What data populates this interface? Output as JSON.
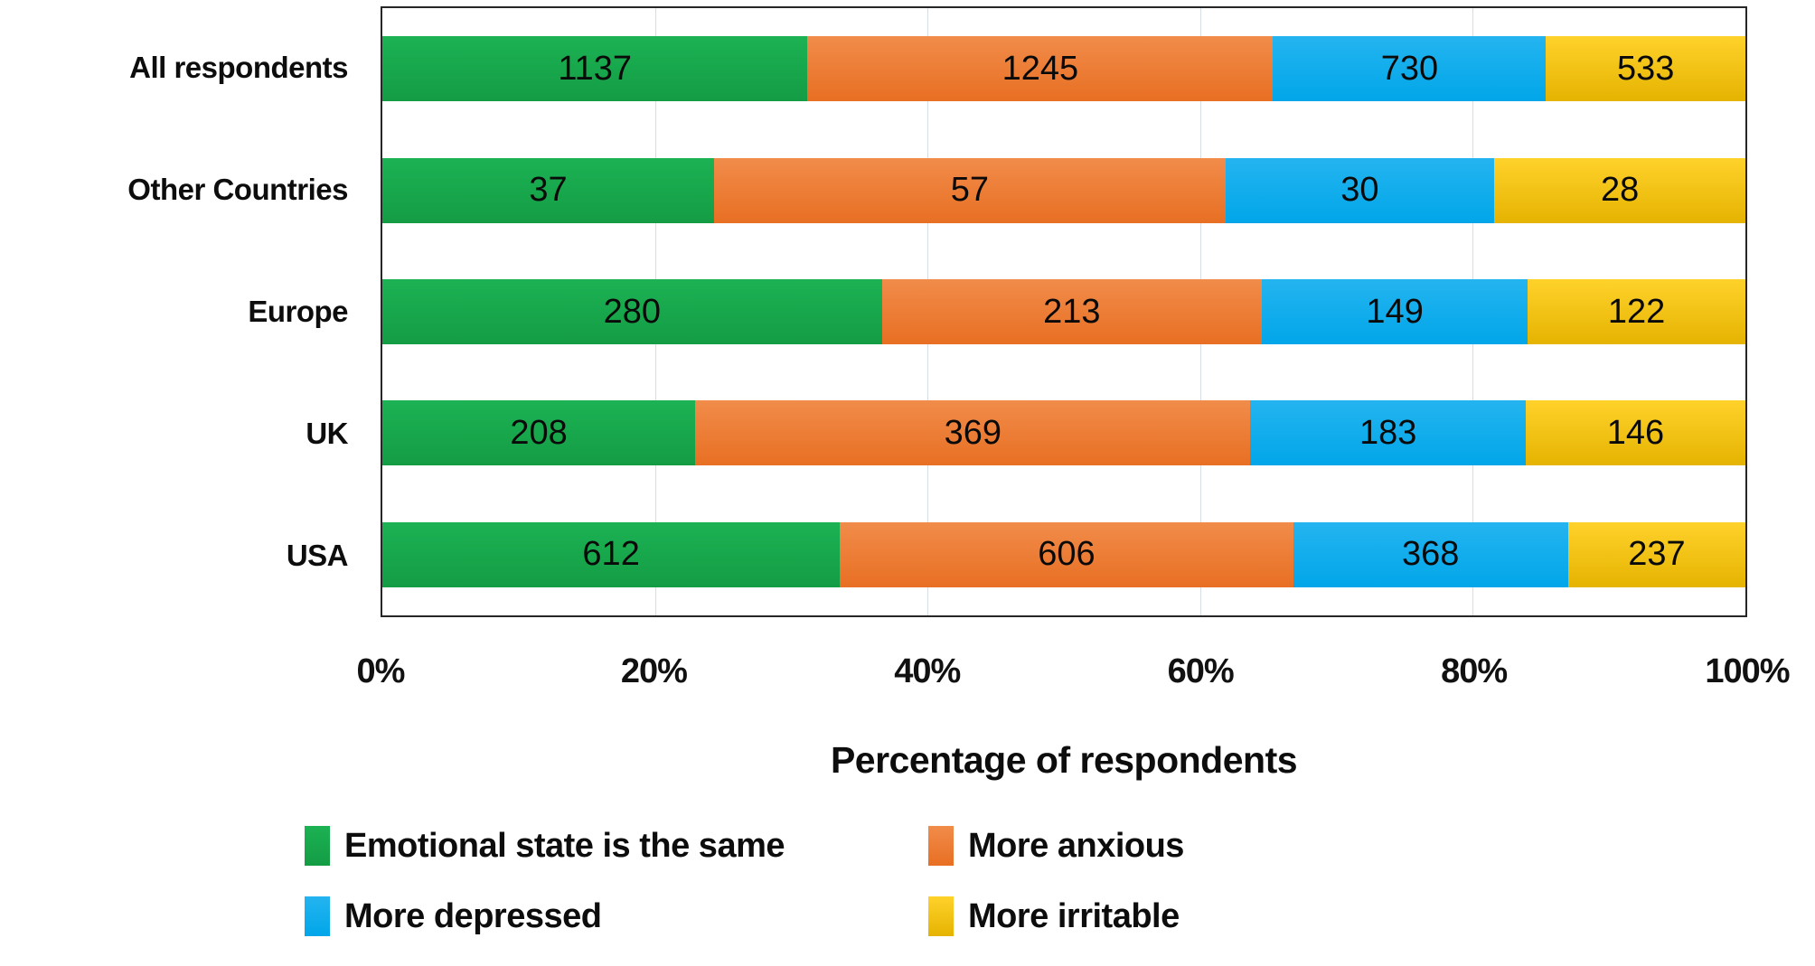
{
  "chart_data": {
    "type": "bar",
    "orientation": "horizontal",
    "stacked": true,
    "percent_stacked": true,
    "categories": [
      "All respondents",
      "Other Countries",
      "Europe",
      "UK",
      "USA"
    ],
    "series": [
      {
        "name": "Emotional state is the same",
        "color": "#17a54a",
        "css_class": "seg-green",
        "values": [
          1137,
          37,
          280,
          208,
          612
        ]
      },
      {
        "name": "More anxious",
        "color": "#ed7d31",
        "css_class": "seg-orange",
        "values": [
          1245,
          57,
          213,
          369,
          606
        ]
      },
      {
        "name": "More depressed",
        "color": "#0caeeb",
        "css_class": "seg-blue",
        "values": [
          730,
          30,
          149,
          183,
          368
        ]
      },
      {
        "name": "More irritable",
        "color": "#f3c50f",
        "css_class": "seg-gold",
        "values": [
          533,
          28,
          122,
          146,
          237
        ]
      }
    ],
    "xlabel": "Percentage of respondents",
    "x_ticks": [
      "0%",
      "20%",
      "40%",
      "60%",
      "80%",
      "100%"
    ],
    "xlim": [
      0,
      100
    ],
    "grid": true,
    "gridline_color": "#d7dfe6",
    "plot_border_color": "#262626",
    "legend_position": "bottom",
    "legend_layout": "2x2"
  }
}
